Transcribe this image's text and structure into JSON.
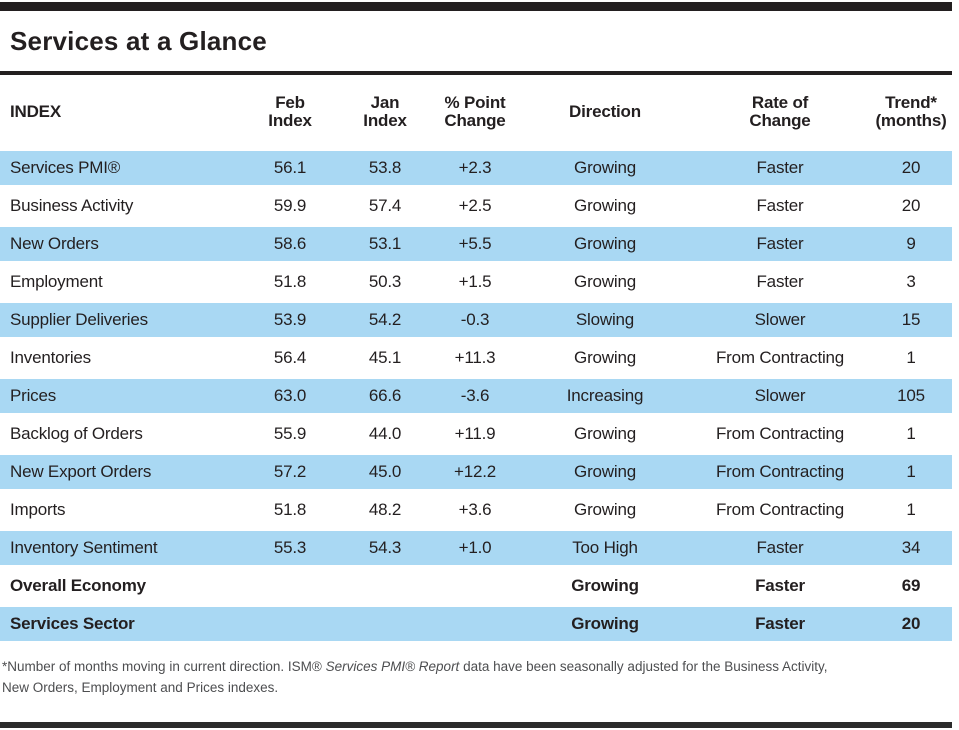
{
  "title": "Services at a Glance",
  "colors": {
    "row_highlight": "#a9d8f3",
    "bar_black": "#231f20",
    "footnote_gray": "#4d4e50"
  },
  "table": {
    "columns": {
      "index": "INDEX",
      "feb": "Feb\nIndex",
      "jan": "Jan\nIndex",
      "change": "% Point\nChange",
      "direction": "Direction",
      "rate": "Rate of\nChange",
      "trend": "Trend*\n(months)"
    },
    "rows": [
      {
        "index": "Services PMI®",
        "feb": "56.1",
        "jan": "53.8",
        "change": "+2.3",
        "direction": "Growing",
        "rate": "Faster",
        "trend": "20",
        "bold": false
      },
      {
        "index": "Business Activity",
        "feb": "59.9",
        "jan": "57.4",
        "change": "+2.5",
        "direction": "Growing",
        "rate": "Faster",
        "trend": "20",
        "bold": false
      },
      {
        "index": "New Orders",
        "feb": "58.6",
        "jan": "53.1",
        "change": "+5.5",
        "direction": "Growing",
        "rate": "Faster",
        "trend": "9",
        "bold": false
      },
      {
        "index": "Employment",
        "feb": "51.8",
        "jan": "50.3",
        "change": "+1.5",
        "direction": "Growing",
        "rate": "Faster",
        "trend": "3",
        "bold": false
      },
      {
        "index": "Supplier Deliveries",
        "feb": "53.9",
        "jan": "54.2",
        "change": "-0.3",
        "direction": "Slowing",
        "rate": "Slower",
        "trend": "15",
        "bold": false
      },
      {
        "index": "Inventories",
        "feb": "56.4",
        "jan": "45.1",
        "change": "+11.3",
        "direction": "Growing",
        "rate": "From Contracting",
        "trend": "1",
        "bold": false
      },
      {
        "index": "Prices",
        "feb": "63.0",
        "jan": "66.6",
        "change": "-3.6",
        "direction": "Increasing",
        "rate": "Slower",
        "trend": "105",
        "bold": false
      },
      {
        "index": "Backlog of Orders",
        "feb": "55.9",
        "jan": "44.0",
        "change": "+11.9",
        "direction": "Growing",
        "rate": "From Contracting",
        "trend": "1",
        "bold": false
      },
      {
        "index": "New Export Orders",
        "feb": "57.2",
        "jan": "45.0",
        "change": "+12.2",
        "direction": "Growing",
        "rate": "From Contracting",
        "trend": "1",
        "bold": false
      },
      {
        "index": "Imports",
        "feb": "51.8",
        "jan": "48.2",
        "change": "+3.6",
        "direction": "Growing",
        "rate": "From Contracting",
        "trend": "1",
        "bold": false
      },
      {
        "index": "Inventory Sentiment",
        "feb": "55.3",
        "jan": "54.3",
        "change": "+1.0",
        "direction": "Too High",
        "rate": "Faster",
        "trend": "34",
        "bold": false
      },
      {
        "index": "Overall Economy",
        "feb": "",
        "jan": "",
        "change": "",
        "direction": "Growing",
        "rate": "Faster",
        "trend": "69",
        "bold": true
      },
      {
        "index": "Services Sector",
        "feb": "",
        "jan": "",
        "change": "",
        "direction": "Growing",
        "rate": "Faster",
        "trend": "20",
        "bold": true
      }
    ]
  },
  "footnote": {
    "line1_pre": "*Number of months moving in current direction. ISM® ",
    "line1_italic": "Services PMI® Report",
    "line1_post": " data have been seasonally adjusted for the Business Activity,",
    "line2": "New Orders, Employment and Prices indexes."
  }
}
